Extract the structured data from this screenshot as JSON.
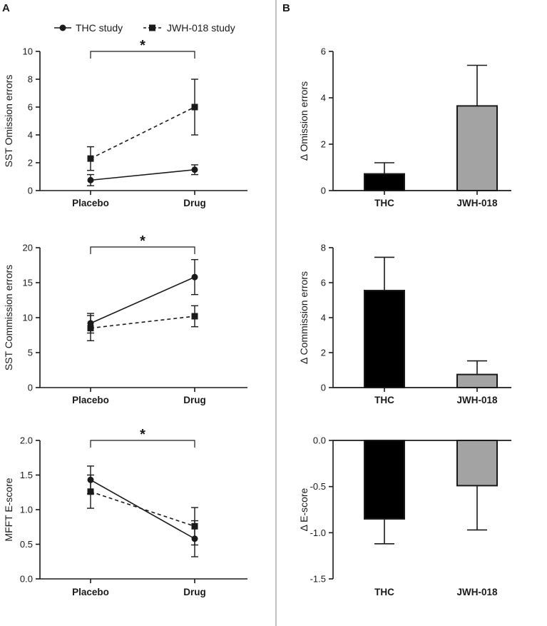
{
  "figure": {
    "panel_a": "A",
    "panel_b": "B",
    "legend": {
      "thc": "THC study",
      "jwh": "JWH-018 study"
    },
    "colors": {
      "ink": "#1a1a1a",
      "thc_bar": "#000000",
      "jwh_bar": "#a3a3a3",
      "divider": "#9a9a9a"
    }
  },
  "chart_data": [
    {
      "id": "a1",
      "type": "line",
      "categories": [
        "Placebo",
        "Drug"
      ],
      "ylabel": "SST Omission errors",
      "ylim": [
        0,
        10
      ],
      "yticks": [
        "0",
        "2",
        "4",
        "6",
        "8",
        "10"
      ],
      "yticks_values": [
        0,
        2,
        4,
        6,
        8,
        10
      ],
      "significance": "*",
      "series": [
        {
          "name": "THC study",
          "values": [
            0.75,
            1.5
          ],
          "errors": [
            0.4,
            0.35
          ],
          "marker": "circle",
          "dash": "solid"
        },
        {
          "name": "JWH-018 study",
          "values": [
            2.3,
            6.0
          ],
          "errors": [
            0.85,
            2.0
          ],
          "marker": "square",
          "dash": "dashed"
        }
      ]
    },
    {
      "id": "a2",
      "type": "line",
      "categories": [
        "Placebo",
        "Drug"
      ],
      "ylabel": "SST Commission errors",
      "ylim": [
        0,
        20
      ],
      "yticks": [
        "0",
        "5",
        "10",
        "15",
        "20"
      ],
      "yticks_values": [
        0,
        5,
        10,
        15,
        20
      ],
      "significance": "*",
      "series": [
        {
          "name": "THC study",
          "values": [
            9.2,
            15.8
          ],
          "errors": [
            1.4,
            2.5
          ],
          "marker": "circle",
          "dash": "solid"
        },
        {
          "name": "JWH-018 study",
          "values": [
            8.5,
            10.2
          ],
          "errors": [
            1.8,
            1.5
          ],
          "marker": "square",
          "dash": "dashed"
        }
      ]
    },
    {
      "id": "a3",
      "type": "line",
      "categories": [
        "Placebo",
        "Drug"
      ],
      "ylabel": "MFFT E-score",
      "ylim": [
        0,
        2.0
      ],
      "yticks": [
        "0.0",
        "0.5",
        "1.0",
        "1.5",
        "2.0"
      ],
      "yticks_values": [
        0,
        0.5,
        1.0,
        1.5,
        2.0
      ],
      "significance": "*",
      "series": [
        {
          "name": "THC study",
          "values": [
            1.43,
            0.58
          ],
          "errors": [
            0.2,
            0.26
          ],
          "marker": "circle",
          "dash": "solid"
        },
        {
          "name": "JWH-018 study",
          "values": [
            1.26,
            0.76
          ],
          "errors": [
            0.24,
            0.27
          ],
          "marker": "square",
          "dash": "dashed"
        }
      ]
    },
    {
      "id": "b1",
      "type": "bar",
      "categories": [
        "THC",
        "JWH-018"
      ],
      "values": [
        0.72,
        3.65
      ],
      "errors": [
        0.48,
        1.75
      ],
      "ylabel": "Δ Omission errors",
      "ylim": [
        0,
        6
      ],
      "yticks": [
        "0",
        "2",
        "4",
        "6"
      ],
      "yticks_values": [
        0,
        2,
        4,
        6
      ]
    },
    {
      "id": "b2",
      "type": "bar",
      "categories": [
        "THC",
        "JWH-018"
      ],
      "values": [
        5.55,
        0.75
      ],
      "errors": [
        1.9,
        0.78
      ],
      "ylabel": "Δ Commission errors",
      "ylim": [
        0,
        8
      ],
      "yticks": [
        "0",
        "2",
        "4",
        "6",
        "8"
      ],
      "yticks_values": [
        0,
        2,
        4,
        6,
        8
      ]
    },
    {
      "id": "b3",
      "type": "bar",
      "categories": [
        "THC",
        "JWH-018"
      ],
      "values": [
        -0.85,
        -0.49
      ],
      "errors": [
        0.27,
        0.48
      ],
      "ylabel": "Δ E-score",
      "ylim": [
        -1.5,
        0
      ],
      "yticks": [
        "0.0",
        "-0.5",
        "-1.0",
        "-1.5"
      ],
      "yticks_values": [
        0,
        -0.5,
        -1.0,
        -1.5
      ]
    }
  ]
}
